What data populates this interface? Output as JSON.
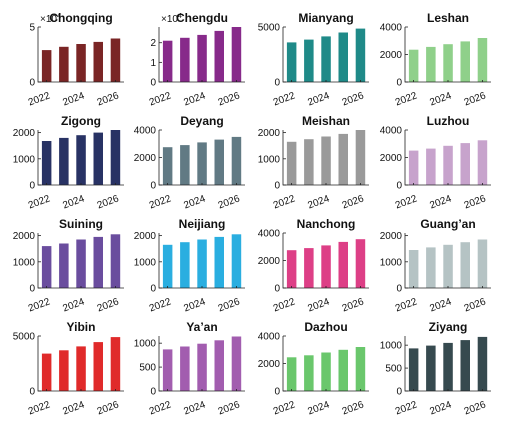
{
  "chart_data": [
    {
      "type": "bar",
      "title": "Chongqing",
      "multiplier": "×10",
      "multiplier_exp": "4",
      "categories": [
        "2022",
        "2023",
        "2024",
        "2025",
        "2026"
      ],
      "values": [
        2.9,
        3.2,
        3.45,
        3.65,
        3.95
      ],
      "ylim": [
        0,
        5
      ],
      "yticks": [
        {
          "value": 0,
          "label": "0"
        },
        {
          "value": 5,
          "label": "5"
        }
      ],
      "xticks": [
        "2022",
        "2024",
        "2026"
      ],
      "color": "#7a2525"
    },
    {
      "type": "bar",
      "title": "Chengdu",
      "multiplier": "×10",
      "multiplier_exp": "4",
      "categories": [
        "2022",
        "2023",
        "2024",
        "2025",
        "2026"
      ],
      "values": [
        2.1,
        2.25,
        2.4,
        2.6,
        2.8
      ],
      "ylim": [
        0,
        2.8
      ],
      "yticks": [
        {
          "value": 0,
          "label": "0"
        },
        {
          "value": 1,
          "label": "1"
        },
        {
          "value": 2,
          "label": "2"
        }
      ],
      "xticks": [
        "2022",
        "2024",
        "2026"
      ],
      "color": "#872a8a"
    },
    {
      "type": "bar",
      "title": "Mianyang",
      "categories": [
        "2022",
        "2023",
        "2024",
        "2025",
        "2026"
      ],
      "values": [
        3600,
        3850,
        4150,
        4500,
        4850
      ],
      "ylim": [
        0,
        5000
      ],
      "yticks": [
        {
          "value": 0,
          "label": "0"
        },
        {
          "value": 5000,
          "label": "5000"
        }
      ],
      "xticks": [
        "2022",
        "2024",
        "2026"
      ],
      "color": "#1f8a88"
    },
    {
      "type": "bar",
      "title": "Leshan",
      "categories": [
        "2022",
        "2023",
        "2024",
        "2025",
        "2026"
      ],
      "values": [
        2350,
        2550,
        2750,
        2950,
        3200
      ],
      "ylim": [
        0,
        4000
      ],
      "yticks": [
        {
          "value": 0,
          "label": "0"
        },
        {
          "value": 2000,
          "label": "2000"
        },
        {
          "value": 4000,
          "label": "4000"
        }
      ],
      "xticks": [
        "2022",
        "2024",
        "2026"
      ],
      "color": "#8fd08a"
    },
    {
      "type": "bar",
      "title": "Zigong",
      "categories": [
        "2022",
        "2023",
        "2024",
        "2025",
        "2026"
      ],
      "values": [
        1680,
        1800,
        1900,
        2000,
        2100
      ],
      "ylim": [
        0,
        2100
      ],
      "yticks": [
        {
          "value": 0,
          "label": "0"
        },
        {
          "value": 1000,
          "label": "1000"
        },
        {
          "value": 2000,
          "label": "2000"
        }
      ],
      "xticks": [
        "2022",
        "2024",
        "2026"
      ],
      "color": "#283264"
    },
    {
      "type": "bar",
      "title": "Deyang",
      "categories": [
        "2022",
        "2023",
        "2024",
        "2025",
        "2026"
      ],
      "values": [
        2750,
        2900,
        3100,
        3300,
        3500
      ],
      "ylim": [
        0,
        4000
      ],
      "yticks": [
        {
          "value": 0,
          "label": "0"
        },
        {
          "value": 2000,
          "label": "2000"
        },
        {
          "value": 4000,
          "label": "4000"
        }
      ],
      "xticks": [
        "2022",
        "2024",
        "2026"
      ],
      "color": "#617a84"
    },
    {
      "type": "bar",
      "title": "Meishan",
      "categories": [
        "2022",
        "2023",
        "2024",
        "2025",
        "2026"
      ],
      "values": [
        1650,
        1750,
        1850,
        1950,
        2100
      ],
      "ylim": [
        0,
        2100
      ],
      "yticks": [
        {
          "value": 0,
          "label": "0"
        },
        {
          "value": 1000,
          "label": "1000"
        },
        {
          "value": 2000,
          "label": "2000"
        }
      ],
      "xticks": [
        "2022",
        "2024",
        "2026"
      ],
      "color": "#9a9a9a"
    },
    {
      "type": "bar",
      "title": "Luzhou",
      "categories": [
        "2022",
        "2023",
        "2024",
        "2025",
        "2026"
      ],
      "values": [
        2500,
        2650,
        2850,
        3050,
        3250
      ],
      "ylim": [
        0,
        4000
      ],
      "yticks": [
        {
          "value": 0,
          "label": "0"
        },
        {
          "value": 2000,
          "label": "2000"
        },
        {
          "value": 4000,
          "label": "4000"
        }
      ],
      "xticks": [
        "2022",
        "2024",
        "2026"
      ],
      "color": "#c7a3cc"
    },
    {
      "type": "bar",
      "title": "Suining",
      "categories": [
        "2022",
        "2023",
        "2024",
        "2025",
        "2026"
      ],
      "values": [
        1600,
        1700,
        1850,
        1950,
        2050
      ],
      "ylim": [
        0,
        2100
      ],
      "yticks": [
        {
          "value": 0,
          "label": "0"
        },
        {
          "value": 1000,
          "label": "1000"
        },
        {
          "value": 2000,
          "label": "2000"
        }
      ],
      "xticks": [
        "2022",
        "2024",
        "2026"
      ],
      "color": "#6a4d9e"
    },
    {
      "type": "bar",
      "title": "Neijiang",
      "categories": [
        "2022",
        "2023",
        "2024",
        "2025",
        "2026"
      ],
      "values": [
        1650,
        1750,
        1850,
        1950,
        2050
      ],
      "ylim": [
        0,
        2100
      ],
      "yticks": [
        {
          "value": 0,
          "label": "0"
        },
        {
          "value": 1000,
          "label": "1000"
        },
        {
          "value": 2000,
          "label": "2000"
        }
      ],
      "xticks": [
        "2022",
        "2024",
        "2026"
      ],
      "color": "#2aaee0"
    },
    {
      "type": "bar",
      "title": "Nanchong",
      "categories": [
        "2022",
        "2023",
        "2024",
        "2025",
        "2026"
      ],
      "values": [
        2750,
        2900,
        3100,
        3350,
        3550
      ],
      "ylim": [
        0,
        4000
      ],
      "yticks": [
        {
          "value": 0,
          "label": "0"
        },
        {
          "value": 2000,
          "label": "2000"
        },
        {
          "value": 4000,
          "label": "4000"
        }
      ],
      "xticks": [
        "2022",
        "2024",
        "2026"
      ],
      "color": "#dd3f86"
    },
    {
      "type": "bar",
      "title": "Guang’an",
      "categories": [
        "2022",
        "2023",
        "2024",
        "2025",
        "2026"
      ],
      "values": [
        1450,
        1550,
        1650,
        1750,
        1850
      ],
      "ylim": [
        0,
        2100
      ],
      "yticks": [
        {
          "value": 0,
          "label": "0"
        },
        {
          "value": 1000,
          "label": "1000"
        },
        {
          "value": 2000,
          "label": "2000"
        }
      ],
      "xticks": [
        "2022",
        "2024",
        "2026"
      ],
      "color": "#b5c3c4"
    },
    {
      "type": "bar",
      "title": "Yibin",
      "categories": [
        "2022",
        "2023",
        "2024",
        "2025",
        "2026"
      ],
      "values": [
        3400,
        3700,
        4050,
        4450,
        4900
      ],
      "ylim": [
        0,
        5000
      ],
      "yticks": [
        {
          "value": 0,
          "label": "0"
        },
        {
          "value": 5000,
          "label": "5000"
        }
      ],
      "xticks": [
        "2022",
        "2024",
        "2026"
      ],
      "color": "#e02a2a"
    },
    {
      "type": "bar",
      "title": "Ya’an",
      "categories": [
        "2022",
        "2023",
        "2024",
        "2025",
        "2026"
      ],
      "values": [
        870,
        930,
        990,
        1060,
        1140
      ],
      "ylim": [
        0,
        1150
      ],
      "yticks": [
        {
          "value": 0,
          "label": "0"
        },
        {
          "value": 500,
          "label": "500"
        },
        {
          "value": 1000,
          "label": "1000"
        }
      ],
      "xticks": [
        "2022",
        "2024",
        "2026"
      ],
      "color": "#a25daf"
    },
    {
      "type": "bar",
      "title": "Dazhou",
      "categories": [
        "2022",
        "2023",
        "2024",
        "2025",
        "2026"
      ],
      "values": [
        2450,
        2600,
        2800,
        3000,
        3200
      ],
      "ylim": [
        0,
        4000
      ],
      "yticks": [
        {
          "value": 0,
          "label": "0"
        },
        {
          "value": 2000,
          "label": "2000"
        },
        {
          "value": 4000,
          "label": "4000"
        }
      ],
      "xticks": [
        "2022",
        "2024",
        "2026"
      ],
      "color": "#6ac76c"
    },
    {
      "type": "bar",
      "title": "Ziyang",
      "categories": [
        "2022",
        "2023",
        "2024",
        "2025",
        "2026"
      ],
      "values": [
        930,
        990,
        1050,
        1110,
        1180
      ],
      "ylim": [
        0,
        1200
      ],
      "yticks": [
        {
          "value": 0,
          "label": "0"
        },
        {
          "value": 500,
          "label": "500"
        },
        {
          "value": 1000,
          "label": "1000"
        }
      ],
      "xticks": [
        "2022",
        "2024",
        "2026"
      ],
      "color": "#364a4f"
    }
  ]
}
